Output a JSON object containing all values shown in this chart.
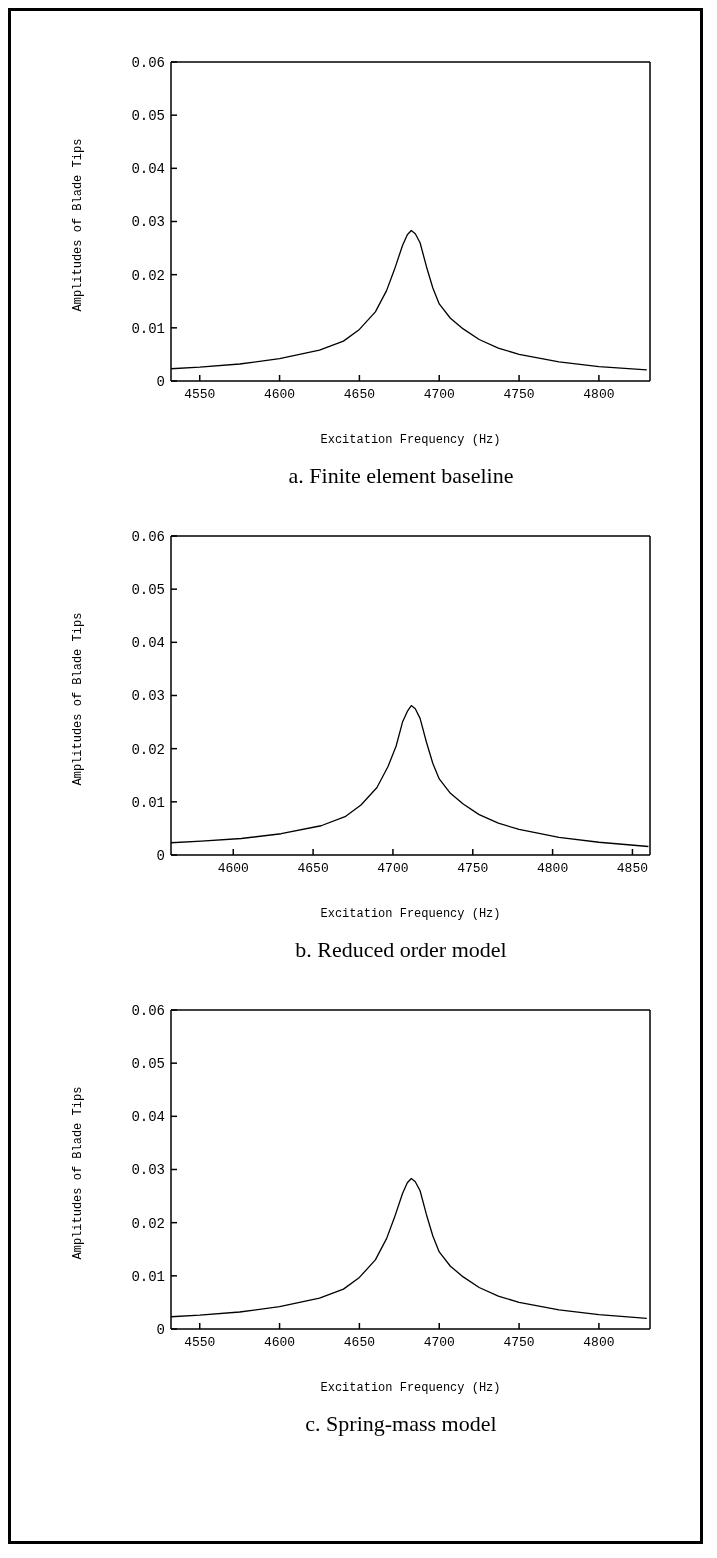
{
  "chart_data": [
    {
      "type": "line",
      "title": "a.  Finite element baseline",
      "xlabel": "Excitation Frequency (Hz)",
      "ylabel": "Amplitudes of Blade Tips",
      "color": "#000000",
      "x": [
        4532,
        4550,
        4575,
        4600,
        4625,
        4640,
        4650,
        4660,
        4667,
        4672,
        4677,
        4680,
        4682.5,
        4685,
        4688,
        4692,
        4696,
        4700,
        4707,
        4715,
        4725,
        4737,
        4750,
        4775,
        4800,
        4830
      ],
      "values": [
        0.0023,
        0.0026,
        0.0032,
        0.0042,
        0.0058,
        0.0075,
        0.0097,
        0.013,
        0.017,
        0.021,
        0.0255,
        0.0275,
        0.0283,
        0.0277,
        0.026,
        0.0215,
        0.0175,
        0.0145,
        0.0118,
        0.0098,
        0.0078,
        0.0062,
        0.005,
        0.0036,
        0.0027,
        0.0021
      ],
      "xlim": [
        4532,
        4832
      ],
      "xticks": [
        4550,
        4600,
        4650,
        4700,
        4750,
        4800
      ],
      "ylim": [
        0,
        0.06
      ],
      "yticks": [
        0,
        0.01,
        0.02,
        0.03,
        0.04,
        0.05,
        0.06
      ]
    },
    {
      "type": "line",
      "title": "b.  Reduced order model",
      "xlabel": "Excitation Frequency (Hz)",
      "ylabel": "Amplitudes of Blade Tips",
      "color": "#000000",
      "x": [
        4561,
        4580,
        4605,
        4630,
        4655,
        4670,
        4680,
        4690,
        4697,
        4702,
        4706,
        4709,
        4711.5,
        4714,
        4717,
        4721,
        4725,
        4729,
        4736,
        4744,
        4754,
        4766,
        4779,
        4804,
        4829,
        4860
      ],
      "values": [
        0.0023,
        0.0026,
        0.0031,
        0.004,
        0.0055,
        0.0072,
        0.0094,
        0.0127,
        0.0167,
        0.0205,
        0.025,
        0.027,
        0.0281,
        0.0275,
        0.0257,
        0.0212,
        0.0172,
        0.0143,
        0.0116,
        0.0096,
        0.0076,
        0.006,
        0.0048,
        0.0033,
        0.0024,
        0.0016
      ],
      "xlim": [
        4561,
        4861
      ],
      "xticks": [
        4600,
        4650,
        4700,
        4750,
        4800,
        4850
      ],
      "ylim": [
        0,
        0.06
      ],
      "yticks": [
        0,
        0.01,
        0.02,
        0.03,
        0.04,
        0.05,
        0.06
      ]
    },
    {
      "type": "line",
      "title": "c.  Spring-mass model",
      "xlabel": "Excitation Frequency (Hz)",
      "ylabel": "Amplitudes of Blade Tips",
      "color": "#000000",
      "x": [
        4532,
        4550,
        4575,
        4600,
        4625,
        4640,
        4650,
        4660,
        4667,
        4672,
        4677,
        4680,
        4682.5,
        4685,
        4688,
        4692,
        4696,
        4700,
        4707,
        4715,
        4725,
        4737,
        4750,
        4775,
        4800,
        4830
      ],
      "values": [
        0.0023,
        0.0026,
        0.0032,
        0.0042,
        0.0058,
        0.0075,
        0.0097,
        0.013,
        0.017,
        0.021,
        0.0255,
        0.0275,
        0.0283,
        0.0277,
        0.026,
        0.0215,
        0.0175,
        0.0145,
        0.0118,
        0.0098,
        0.0078,
        0.0062,
        0.005,
        0.0036,
        0.0027,
        0.002
      ],
      "xlim": [
        4532,
        4832
      ],
      "xticks": [
        4550,
        4600,
        4650,
        4700,
        4750,
        4800
      ],
      "ylim": [
        0,
        0.06
      ],
      "yticks": [
        0,
        0.01,
        0.02,
        0.03,
        0.04,
        0.05,
        0.06
      ]
    }
  ]
}
